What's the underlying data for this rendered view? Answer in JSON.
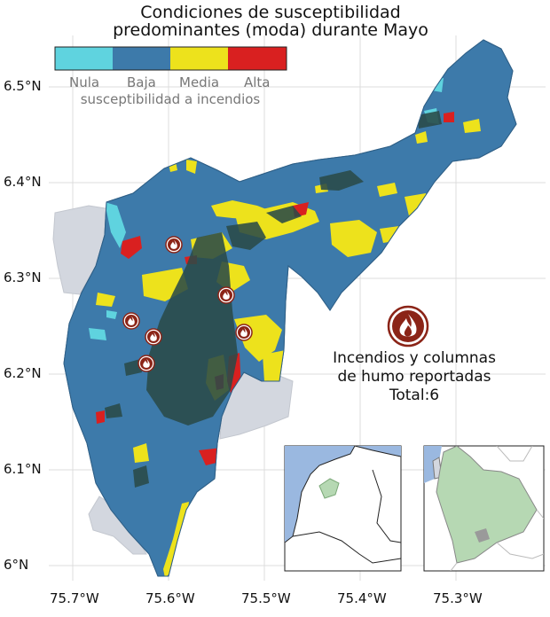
{
  "title_line1": "Condiciones de susceptibilidad",
  "title_line2": "predominantes (moda) durante Mayo",
  "legend": {
    "caption": "susceptibilidad a incendios",
    "classes": [
      {
        "label": "Nula",
        "color": "#5fd3df"
      },
      {
        "label": "Baja",
        "color": "#3d7aaa"
      },
      {
        "label": "Media",
        "color": "#ede21c"
      },
      {
        "label": "Alta",
        "color": "#d92020"
      }
    ]
  },
  "axes": {
    "y_ticks": [
      "6.5°N",
      "6.4°N",
      "6.3°N",
      "6.2°N",
      "6.1°N",
      "6°N"
    ],
    "x_ticks": [
      "75.7°W",
      "75.6°W",
      "75.5°W",
      "75.4°W",
      "75.3°W"
    ]
  },
  "fire_note": {
    "line1": "Incendios y columnas",
    "line2": "de humo reportadas",
    "line3": "Total:6"
  },
  "fire_count": 6,
  "colors": {
    "outside_region": "#d3d7df",
    "dense_canopy": "#2a4a48",
    "fire_marker": "#8b2417",
    "inset_sea": "#9ab8e0",
    "inset_highlight": "#b6d8b3"
  },
  "icons": [
    "fire-icon"
  ]
}
